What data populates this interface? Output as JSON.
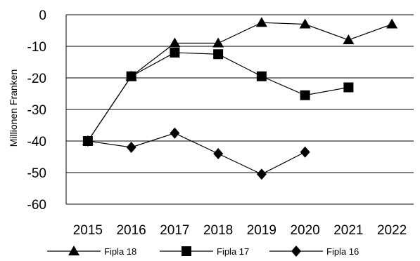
{
  "chart_data": {
    "type": "line",
    "title": "",
    "xlabel": "",
    "ylabel": "Millionen Franken",
    "categories": [
      "2015",
      "2016",
      "2017",
      "2018",
      "2019",
      "2020",
      "2021",
      "2022"
    ],
    "ylim": [
      -60,
      0
    ],
    "yticks": [
      0,
      -10,
      -20,
      -30,
      -40,
      -50,
      -60
    ],
    "ytick_labels": [
      "0",
      "-10",
      "-20",
      "-30",
      "-40",
      "-50",
      "-60"
    ],
    "grid": "horizontal",
    "legend_position": "bottom",
    "series": [
      {
        "name": "Fipla 18",
        "marker": "triangle",
        "color": "#000000",
        "values": [
          -40,
          -19.5,
          -9,
          -9,
          -2.5,
          -3,
          -8,
          -3
        ]
      },
      {
        "name": "Fipla 17",
        "marker": "square",
        "color": "#000000",
        "values": [
          -40,
          -19.5,
          -12,
          -12.5,
          -19.5,
          -25.5,
          -23,
          null
        ]
      },
      {
        "name": "Fipla 16",
        "marker": "diamond",
        "color": "#000000",
        "values": [
          -40,
          -42,
          -37.5,
          -44,
          -50.5,
          -43.5,
          null,
          null
        ]
      }
    ]
  }
}
